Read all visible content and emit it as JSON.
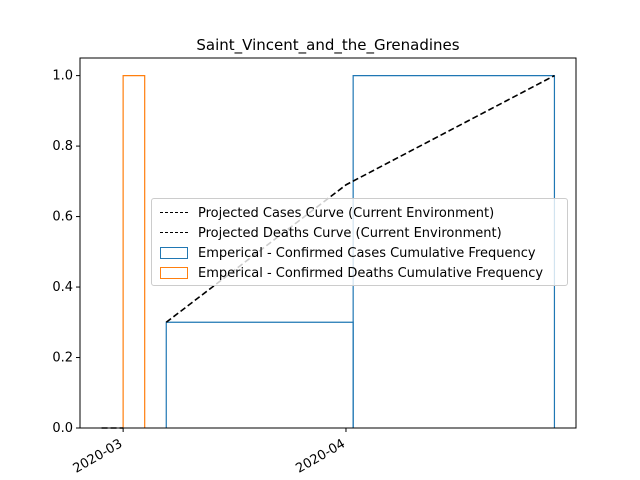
{
  "chart_data": {
    "type": "line",
    "title": "Saint_Vincent_and_the_Grenadines",
    "xlabel": "",
    "ylabel": "",
    "xlim": [
      "2020-02-24",
      "2020-05-03"
    ],
    "ylim": [
      0,
      1.05
    ],
    "x_ticks": [
      "2020-03",
      "2020-04"
    ],
    "y_ticks": [
      "0.0",
      "0.2",
      "0.4",
      "0.6",
      "0.8",
      "1.0"
    ],
    "grid": false,
    "legend_position": "center-right",
    "series": [
      {
        "name": "Projected Cases Curve (Current Environment)",
        "kind": "line",
        "style": "dashed",
        "color": "#000000",
        "x": [
          "2020-03-07",
          "2020-04-01",
          "2020-04-30"
        ],
        "y": [
          0.3,
          0.69,
          1.0
        ]
      },
      {
        "name": "Projected Deaths Curve (Current Environment)",
        "kind": "line",
        "style": "dashed",
        "color": "#000000",
        "x": [
          "2020-02-27",
          "2020-03-01"
        ],
        "y": [
          0.0,
          0.0
        ]
      },
      {
        "name": "Emperical - Confirmed Cases Cumulative Frequency",
        "kind": "step-hist",
        "color": "#1f77b4",
        "bins": [
          {
            "start": "2020-03-07",
            "end": "2020-04-02",
            "value": 0.3
          },
          {
            "start": "2020-04-02",
            "end": "2020-04-30",
            "value": 1.0
          }
        ]
      },
      {
        "name": "Emperical - Confirmed Deaths Cumulative Frequency",
        "kind": "step-hist",
        "color": "#ff7f0e",
        "bins": [
          {
            "start": "2020-03-01",
            "end": "2020-03-04",
            "value": 1.0
          }
        ]
      }
    ]
  }
}
